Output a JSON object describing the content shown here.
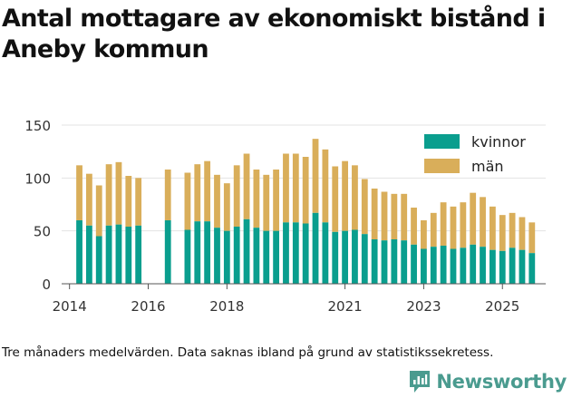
{
  "title": "Antal mottagare av ekonomiskt bistånd i Aneby kommun",
  "footnote": "Tre månaders medelvärden. Data saknas ibland på grund av statistikssekretess.",
  "brand": {
    "name": "Newsworthy",
    "color": "#4a9b8f"
  },
  "chart_data": {
    "type": "bar",
    "stacked": true,
    "ylim": [
      0,
      150
    ],
    "yticks": [
      0,
      50,
      100,
      150
    ],
    "xlim": [
      2013.8,
      2026.1
    ],
    "xticks": [
      2014,
      2016,
      2018,
      2021,
      2023,
      2025
    ],
    "legend_position": "top-right",
    "series": [
      {
        "name": "kvinnor",
        "color": "#0a9e8e"
      },
      {
        "name": "män",
        "color": "#d9ae5a"
      }
    ],
    "bars": [
      {
        "x": 2014.25,
        "kvinnor": 60,
        "total": 112
      },
      {
        "x": 2014.5,
        "kvinnor": 55,
        "total": 104
      },
      {
        "x": 2014.75,
        "kvinnor": 45,
        "total": 93
      },
      {
        "x": 2015.0,
        "kvinnor": 55,
        "total": 113
      },
      {
        "x": 2015.25,
        "kvinnor": 56,
        "total": 115
      },
      {
        "x": 2015.5,
        "kvinnor": 54,
        "total": 102
      },
      {
        "x": 2015.75,
        "kvinnor": 55,
        "total": 100
      },
      {
        "x": 2016.5,
        "kvinnor": 60,
        "total": 108
      },
      {
        "x": 2017.0,
        "kvinnor": 51,
        "total": 105
      },
      {
        "x": 2017.25,
        "kvinnor": 59,
        "total": 113
      },
      {
        "x": 2017.5,
        "kvinnor": 59,
        "total": 116
      },
      {
        "x": 2017.75,
        "kvinnor": 53,
        "total": 103
      },
      {
        "x": 2018.0,
        "kvinnor": 50,
        "total": 95
      },
      {
        "x": 2018.25,
        "kvinnor": 54,
        "total": 112
      },
      {
        "x": 2018.5,
        "kvinnor": 61,
        "total": 123
      },
      {
        "x": 2018.75,
        "kvinnor": 53,
        "total": 108
      },
      {
        "x": 2019.0,
        "kvinnor": 50,
        "total": 103
      },
      {
        "x": 2019.25,
        "kvinnor": 50,
        "total": 108
      },
      {
        "x": 2019.5,
        "kvinnor": 58,
        "total": 123
      },
      {
        "x": 2019.75,
        "kvinnor": 58,
        "total": 123
      },
      {
        "x": 2020.0,
        "kvinnor": 57,
        "total": 120
      },
      {
        "x": 2020.25,
        "kvinnor": 67,
        "total": 137
      },
      {
        "x": 2020.5,
        "kvinnor": 58,
        "total": 127
      },
      {
        "x": 2020.75,
        "kvinnor": 49,
        "total": 111
      },
      {
        "x": 2021.0,
        "kvinnor": 50,
        "total": 116
      },
      {
        "x": 2021.25,
        "kvinnor": 51,
        "total": 112
      },
      {
        "x": 2021.5,
        "kvinnor": 47,
        "total": 99
      },
      {
        "x": 2021.75,
        "kvinnor": 42,
        "total": 90
      },
      {
        "x": 2022.0,
        "kvinnor": 41,
        "total": 87
      },
      {
        "x": 2022.25,
        "kvinnor": 42,
        "total": 85
      },
      {
        "x": 2022.5,
        "kvinnor": 41,
        "total": 85
      },
      {
        "x": 2022.75,
        "kvinnor": 37,
        "total": 72
      },
      {
        "x": 2023.0,
        "kvinnor": 33,
        "total": 60
      },
      {
        "x": 2023.25,
        "kvinnor": 35,
        "total": 67
      },
      {
        "x": 2023.5,
        "kvinnor": 36,
        "total": 77
      },
      {
        "x": 2023.75,
        "kvinnor": 33,
        "total": 73
      },
      {
        "x": 2024.0,
        "kvinnor": 34,
        "total": 77
      },
      {
        "x": 2024.25,
        "kvinnor": 37,
        "total": 86
      },
      {
        "x": 2024.5,
        "kvinnor": 35,
        "total": 82
      },
      {
        "x": 2024.75,
        "kvinnor": 32,
        "total": 73
      },
      {
        "x": 2025.0,
        "kvinnor": 31,
        "total": 65
      },
      {
        "x": 2025.25,
        "kvinnor": 34,
        "total": 67
      },
      {
        "x": 2025.5,
        "kvinnor": 32,
        "total": 63
      },
      {
        "x": 2025.75,
        "kvinnor": 29,
        "total": 58
      }
    ]
  }
}
